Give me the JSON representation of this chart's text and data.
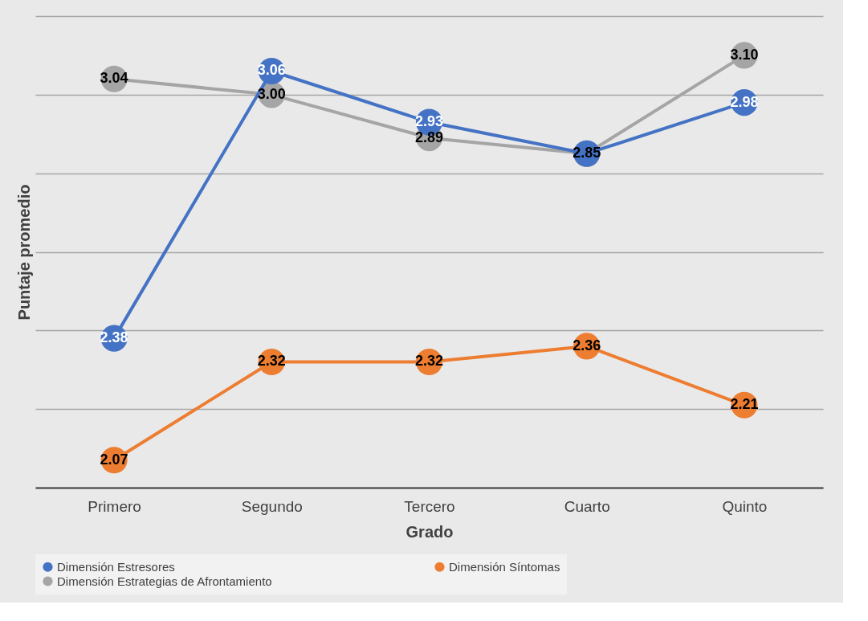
{
  "chart_data": {
    "type": "line",
    "xlabel": "Grado",
    "ylabel": "Puntaje promedio",
    "categories": [
      "Primero",
      "Segundo",
      "Tercero",
      "Cuarto",
      "Quinto"
    ],
    "series": [
      {
        "name": "Dimensión Estresores",
        "color": "#4472c4",
        "values": [
          2.38,
          3.06,
          2.93,
          2.85,
          2.98
        ],
        "value_labels": [
          "2.38",
          "3.06",
          "2.93",
          null,
          "2.98"
        ]
      },
      {
        "name": "Dimensión Síntomas",
        "color": "#ed7d31",
        "values": [
          2.07,
          2.32,
          2.32,
          2.36,
          2.21
        ],
        "value_labels": [
          "2.07",
          "2.32",
          "2.32",
          "2.36",
          "2.21"
        ]
      },
      {
        "name": "Dimensión Estrategias de Afrontamiento",
        "color": "#a5a5a5",
        "values": [
          3.04,
          3.0,
          2.89,
          2.85,
          3.1
        ],
        "value_labels": [
          "3.04",
          "3.00",
          "2.89",
          "2.85",
          "3.10"
        ]
      }
    ],
    "ylim": [
      2.0,
      3.2
    ],
    "yticks": [
      {
        "value": 2.0,
        "label": null
      },
      {
        "value": 2.2,
        "label": null
      },
      {
        "value": 2.4,
        "label": null
      },
      {
        "value": 2.6,
        "label": null
      },
      {
        "value": 2.8,
        "label": null
      },
      {
        "value": 3.0,
        "label": null
      },
      {
        "value": 3.2,
        "label": null
      }
    ],
    "tick_labels": "x",
    "grid": "y",
    "legend": "bottom",
    "marker": "circle",
    "line_style": "solid"
  }
}
